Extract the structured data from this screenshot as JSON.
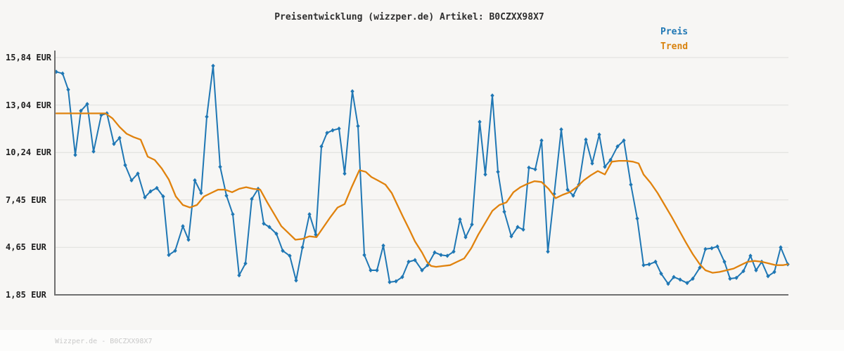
{
  "title": "Preisentwicklung (wizzper.de) Artikel: B0CZXX98X7",
  "watermark": "Wizzper.de - B0CZXX98X7",
  "legend": [
    {
      "label": "Preis",
      "color": "#1f77b4"
    },
    {
      "label": "Trend",
      "color": "#d9830f"
    }
  ],
  "colors": {
    "background": "#f7f6f4",
    "footer": "#fcfcfb",
    "grid": "#e4e4e1",
    "axis": "#707070",
    "title_text": "#2e2e2e",
    "tick_text": "#1f1f1f",
    "watermark_text": "#c9c9c9",
    "price_line": "#1f77b4",
    "trend_line": "#e0820d"
  },
  "chart_data": {
    "type": "line",
    "title": "Preisentwicklung (wizzper.de) Artikel: B0CZXX98X7",
    "xlabel": "",
    "ylabel": "EUR",
    "ylim": [
      1.85,
      15.84
    ],
    "grid": "horizontal",
    "legend_position": "top-right",
    "x_axis_labels_visible": false,
    "x_units": "pixel-position (no x tick labels shown in chart)",
    "y_ticks": [
      {
        "label": "15,84 EUR",
        "value": 15.84
      },
      {
        "label": "13,04 EUR",
        "value": 13.04
      },
      {
        "label": "10,24 EUR",
        "value": 10.24
      },
      {
        "label": "7,45 EUR",
        "value": 7.45
      },
      {
        "label": "4,65 EUR",
        "value": 4.65
      },
      {
        "label": "1,85 EUR",
        "value": 1.85
      }
    ],
    "series": [
      {
        "name": "Preis",
        "color": "#1f77b4",
        "marker": "diamond",
        "line_width": 2,
        "points": [
          [
            80,
            15.0
          ],
          [
            89,
            14.9
          ],
          [
            97,
            13.95
          ],
          [
            107,
            10.1
          ],
          [
            115,
            12.7
          ],
          [
            124,
            13.1
          ],
          [
            133,
            10.3
          ],
          [
            144,
            12.45
          ],
          [
            152,
            12.55
          ],
          [
            162,
            10.75
          ],
          [
            170,
            11.1
          ],
          [
            178,
            9.5
          ],
          [
            187,
            8.6
          ],
          [
            196,
            9.0
          ],
          [
            206,
            7.6
          ],
          [
            214,
            7.95
          ],
          [
            223,
            8.15
          ],
          [
            232,
            7.65
          ],
          [
            240,
            4.2
          ],
          [
            249,
            4.45
          ],
          [
            260,
            5.9
          ],
          [
            268,
            5.1
          ],
          [
            277,
            8.6
          ],
          [
            286,
            7.85
          ],
          [
            294,
            12.35
          ],
          [
            303,
            15.35
          ],
          [
            313,
            9.4
          ],
          [
            322,
            7.7
          ],
          [
            331,
            6.6
          ],
          [
            340,
            3.0
          ],
          [
            349,
            3.7
          ],
          [
            358,
            7.5
          ],
          [
            367,
            8.1
          ],
          [
            375,
            6.05
          ],
          [
            383,
            5.85
          ],
          [
            393,
            5.45
          ],
          [
            402,
            4.45
          ],
          [
            412,
            4.15
          ],
          [
            421,
            2.7
          ],
          [
            430,
            4.65
          ],
          [
            440,
            6.6
          ],
          [
            449,
            5.4
          ],
          [
            457,
            10.6
          ],
          [
            465,
            11.4
          ],
          [
            473,
            11.55
          ],
          [
            482,
            11.65
          ],
          [
            490,
            9.0
          ],
          [
            501,
            13.85
          ],
          [
            509,
            11.8
          ],
          [
            518,
            4.2
          ],
          [
            527,
            3.3
          ],
          [
            536,
            3.3
          ],
          [
            545,
            4.75
          ],
          [
            554,
            2.6
          ],
          [
            563,
            2.65
          ],
          [
            572,
            2.9
          ],
          [
            581,
            3.8
          ],
          [
            590,
            3.9
          ],
          [
            600,
            3.3
          ],
          [
            608,
            3.6
          ],
          [
            618,
            4.35
          ],
          [
            627,
            4.2
          ],
          [
            636,
            4.15
          ],
          [
            645,
            4.4
          ],
          [
            654,
            6.3
          ],
          [
            662,
            5.25
          ],
          [
            671,
            6.0
          ],
          [
            682,
            12.05
          ],
          [
            690,
            8.95
          ],
          [
            700,
            13.6
          ],
          [
            708,
            9.1
          ],
          [
            717,
            6.75
          ],
          [
            727,
            5.3
          ],
          [
            736,
            5.85
          ],
          [
            744,
            5.7
          ],
          [
            752,
            9.35
          ],
          [
            761,
            9.25
          ],
          [
            770,
            10.95
          ],
          [
            779,
            4.4
          ],
          [
            788,
            7.8
          ],
          [
            798,
            11.6
          ],
          [
            807,
            8.05
          ],
          [
            815,
            7.7
          ],
          [
            823,
            8.35
          ],
          [
            833,
            11.0
          ],
          [
            842,
            9.6
          ],
          [
            852,
            11.3
          ],
          [
            860,
            9.4
          ],
          [
            868,
            9.8
          ],
          [
            878,
            10.6
          ],
          [
            887,
            10.95
          ],
          [
            897,
            8.35
          ],
          [
            906,
            6.35
          ],
          [
            915,
            3.6
          ],
          [
            923,
            3.65
          ],
          [
            932,
            3.8
          ],
          [
            940,
            3.1
          ],
          [
            950,
            2.5
          ],
          [
            958,
            2.9
          ],
          [
            967,
            2.75
          ],
          [
            977,
            2.55
          ],
          [
            985,
            2.8
          ],
          [
            995,
            3.45
          ],
          [
            1003,
            4.55
          ],
          [
            1012,
            4.6
          ],
          [
            1020,
            4.7
          ],
          [
            1030,
            3.8
          ],
          [
            1038,
            2.8
          ],
          [
            1047,
            2.85
          ],
          [
            1057,
            3.25
          ],
          [
            1067,
            4.15
          ],
          [
            1075,
            3.3
          ],
          [
            1083,
            3.8
          ],
          [
            1092,
            2.95
          ],
          [
            1101,
            3.2
          ],
          [
            1110,
            4.65
          ],
          [
            1120,
            3.65
          ]
        ]
      },
      {
        "name": "Trend",
        "color": "#e0820d",
        "marker": "none",
        "line_width": 2.3,
        "points": [
          [
            80,
            12.55
          ],
          [
            150,
            12.55
          ],
          [
            160,
            12.25
          ],
          [
            170,
            11.75
          ],
          [
            180,
            11.35
          ],
          [
            190,
            11.15
          ],
          [
            200,
            11.0
          ],
          [
            210,
            10.0
          ],
          [
            220,
            9.8
          ],
          [
            230,
            9.3
          ],
          [
            240,
            8.65
          ],
          [
            250,
            7.65
          ],
          [
            260,
            7.15
          ],
          [
            270,
            7.0
          ],
          [
            280,
            7.15
          ],
          [
            290,
            7.65
          ],
          [
            300,
            7.85
          ],
          [
            310,
            8.05
          ],
          [
            320,
            8.05
          ],
          [
            330,
            7.9
          ],
          [
            340,
            8.1
          ],
          [
            350,
            8.2
          ],
          [
            360,
            8.1
          ],
          [
            370,
            8.05
          ],
          [
            380,
            7.3
          ],
          [
            390,
            6.6
          ],
          [
            400,
            5.9
          ],
          [
            410,
            5.5
          ],
          [
            420,
            5.1
          ],
          [
            430,
            5.15
          ],
          [
            440,
            5.3
          ],
          [
            450,
            5.25
          ],
          [
            460,
            5.85
          ],
          [
            470,
            6.45
          ],
          [
            480,
            7.0
          ],
          [
            490,
            7.2
          ],
          [
            500,
            8.2
          ],
          [
            511,
            9.2
          ],
          [
            520,
            9.1
          ],
          [
            528,
            8.8
          ],
          [
            537,
            8.6
          ],
          [
            548,
            8.35
          ],
          [
            557,
            7.85
          ],
          [
            565,
            7.15
          ],
          [
            573,
            6.45
          ],
          [
            582,
            5.7
          ],
          [
            590,
            5.0
          ],
          [
            600,
            4.35
          ],
          [
            607,
            3.8
          ],
          [
            613,
            3.55
          ],
          [
            620,
            3.5
          ],
          [
            630,
            3.55
          ],
          [
            640,
            3.6
          ],
          [
            650,
            3.8
          ],
          [
            660,
            4.0
          ],
          [
            670,
            4.6
          ],
          [
            680,
            5.4
          ],
          [
            690,
            6.1
          ],
          [
            700,
            6.8
          ],
          [
            710,
            7.15
          ],
          [
            720,
            7.3
          ],
          [
            730,
            7.9
          ],
          [
            740,
            8.2
          ],
          [
            750,
            8.4
          ],
          [
            760,
            8.55
          ],
          [
            770,
            8.5
          ],
          [
            780,
            8.1
          ],
          [
            790,
            7.55
          ],
          [
            800,
            7.75
          ],
          [
            810,
            7.9
          ],
          [
            820,
            8.2
          ],
          [
            830,
            8.6
          ],
          [
            840,
            8.9
          ],
          [
            850,
            9.15
          ],
          [
            860,
            8.95
          ],
          [
            870,
            9.7
          ],
          [
            880,
            9.75
          ],
          [
            890,
            9.75
          ],
          [
            900,
            9.7
          ],
          [
            908,
            9.6
          ],
          [
            915,
            8.95
          ],
          [
            925,
            8.45
          ],
          [
            935,
            7.85
          ],
          [
            945,
            7.15
          ],
          [
            955,
            6.45
          ],
          [
            965,
            5.7
          ],
          [
            975,
            4.95
          ],
          [
            985,
            4.25
          ],
          [
            995,
            3.65
          ],
          [
            1003,
            3.3
          ],
          [
            1013,
            3.15
          ],
          [
            1023,
            3.2
          ],
          [
            1033,
            3.3
          ],
          [
            1043,
            3.4
          ],
          [
            1053,
            3.6
          ],
          [
            1063,
            3.8
          ],
          [
            1073,
            3.85
          ],
          [
            1083,
            3.8
          ],
          [
            1093,
            3.7
          ],
          [
            1103,
            3.6
          ],
          [
            1113,
            3.6
          ],
          [
            1120,
            3.65
          ]
        ]
      }
    ]
  }
}
